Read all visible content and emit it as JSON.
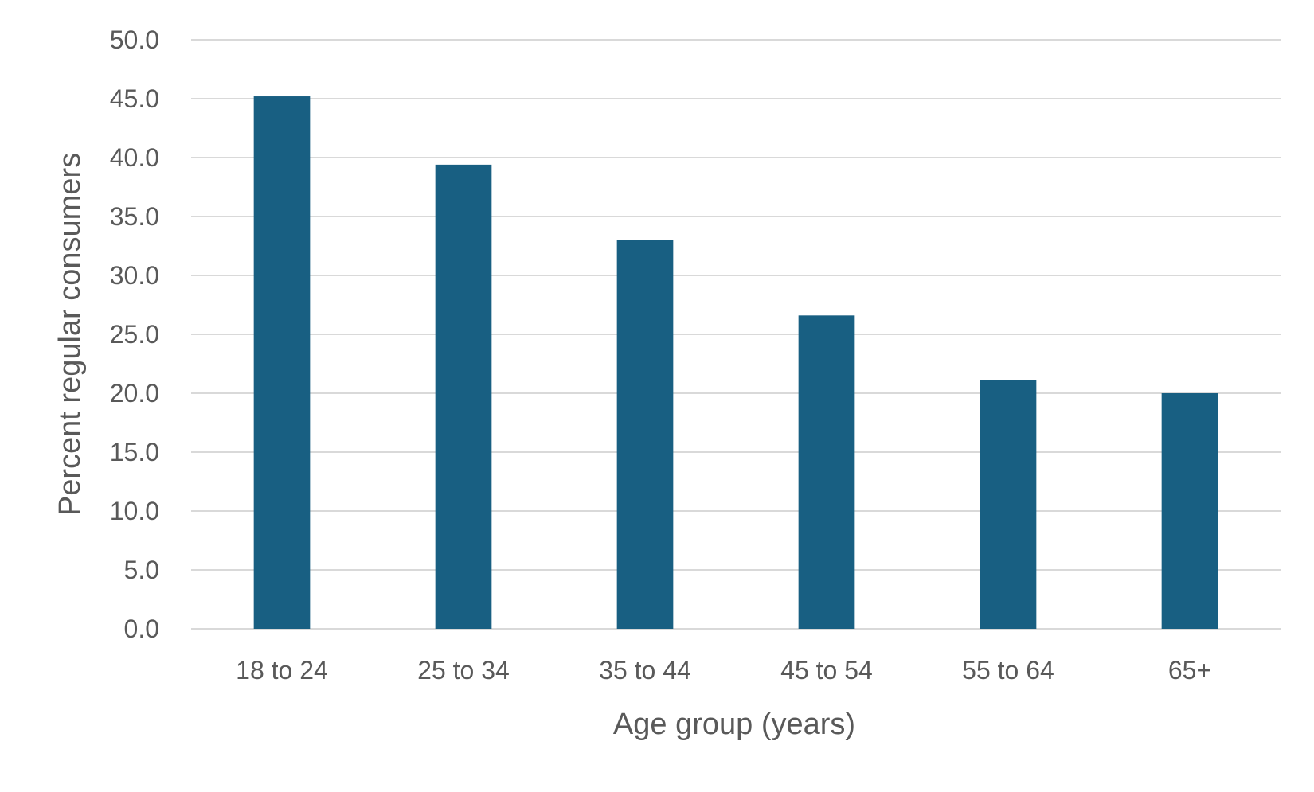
{
  "chart_data": {
    "type": "bar",
    "title": "",
    "xlabel": "Age group (years)",
    "ylabel": "Percent regular consumers",
    "categories": [
      "18 to 24",
      "25 to 34",
      "35 to 44",
      "45 to 54",
      "55 to 64",
      "65+"
    ],
    "values": [
      45.2,
      39.4,
      33.0,
      26.6,
      21.1,
      20.0
    ],
    "ylim": [
      0,
      50
    ],
    "yticks": [
      "0.0",
      "5.0",
      "10.0",
      "15.0",
      "20.0",
      "25.0",
      "30.0",
      "35.0",
      "40.0",
      "45.0",
      "50.0"
    ],
    "grid": true,
    "legend": "none",
    "colors": {
      "bar": "#185f82",
      "grid": "#d9d9d9",
      "text": "#595959"
    }
  }
}
